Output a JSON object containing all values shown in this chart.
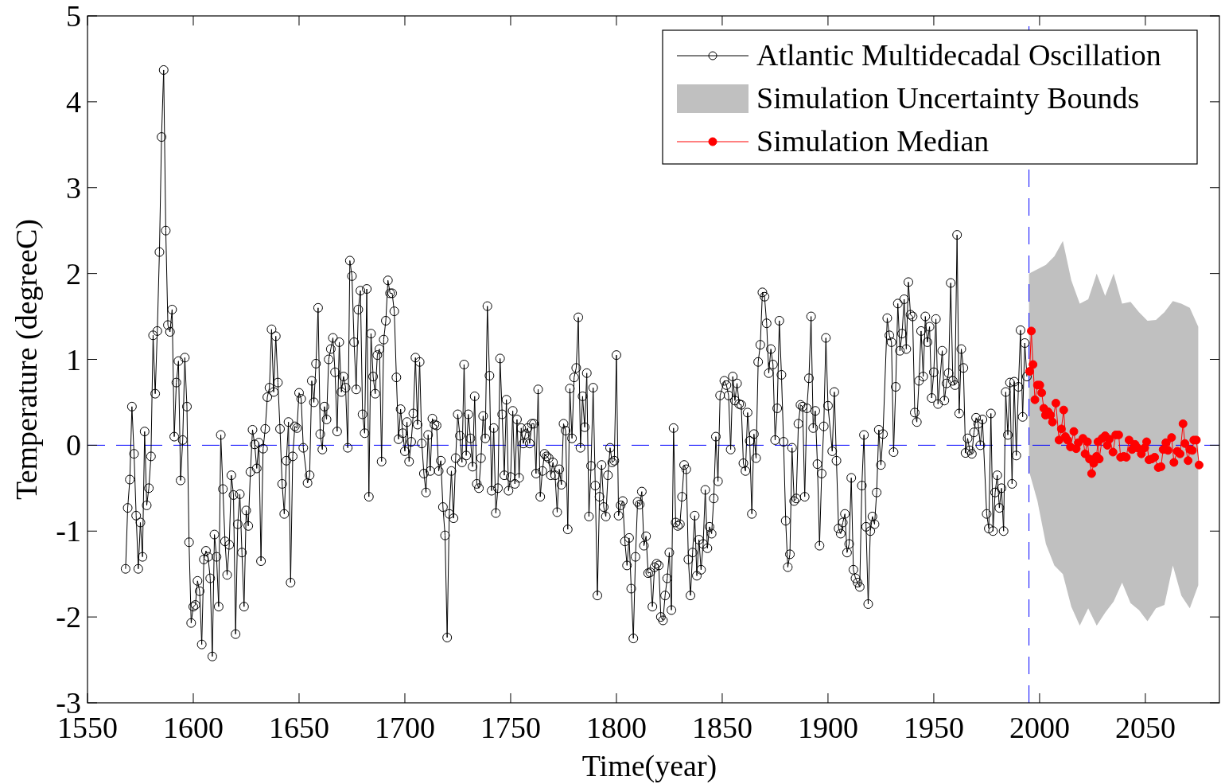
{
  "chart_data": {
    "type": "line",
    "xlabel": "Time(year)",
    "ylabel": "Temperature (degreeC)",
    "xlim": [
      1550,
      2085
    ],
    "xticks": [
      1550,
      1600,
      1650,
      1700,
      1750,
      1800,
      1850,
      1900,
      1950,
      2000,
      2050
    ],
    "ylim": [
      -3,
      5
    ],
    "yticks": [
      -3,
      -2,
      -1,
      0,
      1,
      2,
      3,
      4,
      5
    ],
    "grid": false,
    "legend": "top right",
    "ref_lines": [
      {
        "axis": "y",
        "value": 0,
        "color": "#0000ff",
        "line_style": "dashed"
      },
      {
        "axis": "x",
        "value": 1995,
        "color": "#0000ff",
        "line_style": "dashed"
      }
    ],
    "series": [
      {
        "name": "Atlantic Multidecadal Oscillation",
        "color": "#000000",
        "marker": "circle",
        "line_style": "solid",
        "x": [
          1568,
          1569,
          1570,
          1571,
          1572,
          1573,
          1574,
          1575,
          1576,
          1577,
          1578,
          1579,
          1580,
          1581,
          1582,
          1583,
          1584,
          1585,
          1586,
          1587,
          1588,
          1589,
          1590,
          1591,
          1592,
          1593,
          1594,
          1595,
          1596,
          1597,
          1598,
          1599,
          1600,
          1601,
          1602,
          1603,
          1604,
          1605,
          1606,
          1607,
          1608,
          1609,
          1610,
          1611,
          1612,
          1613,
          1614,
          1615,
          1616,
          1617,
          1618,
          1619,
          1620,
          1621,
          1622,
          1623,
          1624,
          1625,
          1626,
          1627,
          1628,
          1629,
          1630,
          1631,
          1632,
          1633,
          1634,
          1635,
          1636,
          1637,
          1638,
          1639,
          1640,
          1641,
          1642,
          1643,
          1644,
          1645,
          1646,
          1647,
          1648,
          1649,
          1650,
          1651,
          1652,
          1654,
          1655,
          1656,
          1657,
          1658,
          1659,
          1660,
          1661,
          1662,
          1663,
          1664,
          1665,
          1666,
          1667,
          1668,
          1669,
          1670,
          1671,
          1672,
          1673,
          1674,
          1675,
          1676,
          1677,
          1678,
          1679,
          1680,
          1681,
          1682,
          1683,
          1684,
          1685,
          1686,
          1687,
          1688,
          1689,
          1690,
          1691,
          1692,
          1693,
          1694,
          1695,
          1696,
          1697,
          1698,
          1699,
          1700,
          1701,
          1702,
          1703,
          1704,
          1705,
          1706,
          1707,
          1708,
          1709,
          1710,
          1711,
          1712,
          1713,
          1714,
          1715,
          1716,
          1717,
          1718,
          1719,
          1720,
          1721,
          1722,
          1723,
          1724,
          1725,
          1726,
          1727,
          1728,
          1729,
          1730,
          1731,
          1732,
          1733,
          1734,
          1735,
          1736,
          1737,
          1738,
          1739,
          1740,
          1741,
          1742,
          1743,
          1744,
          1745,
          1746,
          1747,
          1748,
          1749,
          1750,
          1751,
          1752,
          1753,
          1754,
          1755,
          1756,
          1757,
          1758,
          1759,
          1760,
          1761,
          1762,
          1763,
          1764,
          1765,
          1766,
          1767,
          1768,
          1769,
          1770,
          1771,
          1772,
          1773,
          1774,
          1775,
          1776,
          1777,
          1778,
          1779,
          1780,
          1781,
          1782,
          1783,
          1784,
          1785,
          1786,
          1787,
          1788,
          1789,
          1790,
          1791,
          1792,
          1793,
          1794,
          1795,
          1796,
          1797,
          1798,
          1799,
          1800,
          1801,
          1802,
          1803,
          1804,
          1805,
          1806,
          1807,
          1808,
          1809,
          1810,
          1811,
          1812,
          1813,
          1814,
          1815,
          1816,
          1817,
          1818,
          1819,
          1820,
          1821,
          1822,
          1823,
          1824,
          1825,
          1826,
          1827,
          1828,
          1829,
          1830,
          1831,
          1832,
          1833,
          1834,
          1835,
          1836,
          1837,
          1838,
          1839,
          1840,
          1841,
          1842,
          1843,
          1844,
          1845,
          1846,
          1847,
          1848,
          1849,
          1851,
          1852,
          1853,
          1854,
          1855,
          1856,
          1857,
          1858,
          1859,
          1860,
          1861,
          1862,
          1863,
          1864,
          1865,
          1866,
          1867,
          1868,
          1869,
          1870,
          1871,
          1872,
          1873,
          1874,
          1875,
          1876,
          1877,
          1878,
          1879,
          1880,
          1881,
          1882,
          1883,
          1884,
          1885,
          1886,
          1887,
          1888,
          1889,
          1890,
          1891,
          1892,
          1893,
          1894,
          1895,
          1896,
          1897,
          1898,
          1899,
          1900,
          1902,
          1903,
          1904,
          1905,
          1906,
          1907,
          1908,
          1909,
          1910,
          1911,
          1912,
          1913,
          1914,
          1915,
          1916,
          1917,
          1918,
          1919,
          1920,
          1921,
          1922,
          1923,
          1924,
          1925,
          1926,
          1928,
          1929,
          1930,
          1931,
          1932,
          1933,
          1934,
          1935,
          1936,
          1937,
          1938,
          1939,
          1940,
          1941,
          1942,
          1943,
          1944,
          1945,
          1946,
          1947,
          1948,
          1949,
          1950,
          1951,
          1952,
          1954,
          1955,
          1956,
          1957,
          1958,
          1959,
          1960,
          1961,
          1962,
          1963,
          1964,
          1965,
          1966,
          1967,
          1968,
          1969,
          1970,
          1971,
          1972,
          1973,
          1975,
          1976,
          1977,
          1978,
          1979,
          1980,
          1981,
          1982,
          1983,
          1984,
          1985,
          1986,
          1987,
          1988,
          1989,
          1990,
          1991,
          1992,
          1993,
          1994
        ],
        "values": [
          -1.44,
          -0.73,
          -0.4,
          0.45,
          -0.1,
          -0.82,
          -1.44,
          -0.9,
          -1.3,
          0.16,
          -0.7,
          -0.5,
          -0.13,
          1.28,
          0.6,
          1.33,
          2.25,
          3.59,
          4.37,
          2.5,
          1.4,
          1.32,
          1.58,
          0.1,
          0.73,
          0.98,
          -0.41,
          0.06,
          1.02,
          0.45,
          -1.13,
          -2.07,
          -1.88,
          -1.86,
          -1.58,
          -1.7,
          -2.32,
          -1.33,
          -1.23,
          -1.3,
          -1.55,
          -2.46,
          -1.04,
          -1.3,
          -1.88,
          0.12,
          -0.51,
          -1.12,
          -1.51,
          -1.16,
          -0.35,
          -0.58,
          -2.2,
          -0.92,
          -0.57,
          -1.25,
          -1.88,
          -0.76,
          -0.94,
          -0.31,
          0.18,
          0.01,
          -0.27,
          0.03,
          -1.35,
          -0.04,
          0.19,
          0.56,
          0.67,
          1.35,
          0.62,
          1.27,
          0.73,
          0.19,
          -0.45,
          -0.8,
          -0.18,
          0.27,
          -1.6,
          -0.13,
          0.22,
          0.2,
          0.61,
          0.54,
          -0.03,
          -0.44,
          -0.35,
          0.75,
          0.5,
          0.95,
          1.6,
          0.13,
          -0.05,
          0.45,
          0.3,
          1.0,
          1.12,
          1.25,
          0.85,
          0.16,
          1.2,
          0.62,
          0.8,
          0.67,
          -0.03,
          2.15,
          1.97,
          1.2,
          0.65,
          1.58,
          1.8,
          0.36,
          0.14,
          1.82,
          -0.6,
          1.3,
          0.8,
          0.6,
          1.05,
          1.12,
          -0.19,
          1.23,
          1.45,
          1.92,
          1.77,
          1.77,
          1.56,
          0.79,
          0.07,
          0.42,
          0.14,
          -0.07,
          0.27,
          -0.19,
          0.04,
          0.37,
          1.02,
          0.24,
          0.97,
          0.02,
          -0.33,
          -0.55,
          0.12,
          -0.3,
          0.31,
          0.24,
          0.23,
          -0.3,
          -0.18,
          -0.72,
          -1.05,
          -2.24,
          -0.8,
          -0.3,
          -0.85,
          -0.15,
          0.36,
          0.11,
          -0.2,
          0.94,
          -0.12,
          0.36,
          0.08,
          -0.25,
          0.57,
          -0.45,
          -0.5,
          -0.15,
          0.34,
          0.08,
          1.62,
          0.81,
          -0.53,
          0.2,
          -0.79,
          -0.5,
          1.01,
          0.36,
          -0.35,
          0.53,
          -0.53,
          -0.37,
          0.4,
          -0.45,
          0.3,
          -0.38,
          0.2,
          0.02,
          0.13,
          0.2,
          0.02,
          0.25,
          0.25,
          -0.33,
          0.65,
          -0.6,
          -0.3,
          -0.1,
          -0.13,
          -0.15,
          -0.35,
          -0.2,
          -0.35,
          -0.78,
          -0.28,
          -0.46,
          0.25,
          0.17,
          -0.98,
          0.66,
          0.08,
          0.79,
          0.9,
          1.49,
          -0.03,
          0.57,
          0.21,
          0.84,
          -0.83,
          -0.24,
          0.67,
          -0.47,
          -1.75,
          -0.6,
          -0.23,
          -0.72,
          -0.83,
          -0.35,
          -0.03,
          -0.2,
          -0.18,
          1.05,
          -0.82,
          -0.7,
          -0.65,
          -1.12,
          -1.4,
          -1.08,
          -1.67,
          -2.25,
          -1.3,
          -0.66,
          -0.69,
          -0.54,
          -1.17,
          -1.06,
          -1.49,
          -1.48,
          -1.88,
          -1.42,
          -1.38,
          -1.4,
          -2.0,
          -2.04,
          -1.75,
          -1.55,
          -1.25,
          -1.92,
          0.2,
          -0.9,
          -0.94,
          -0.92,
          -0.6,
          -0.23,
          -0.28,
          -1.33,
          -1.75,
          -1.25,
          -0.82,
          -1.52,
          -1.1,
          -1.45,
          -1.15,
          -0.52,
          -1.2,
          -0.95,
          -1.03,
          -0.62,
          0.1,
          -0.42,
          0.58,
          0.75,
          0.7,
          0.58,
          -0.05,
          0.8,
          0.52,
          0.72,
          0.48,
          0.47,
          -0.21,
          -0.3,
          0.38,
          0.05,
          -0.8,
          0.13,
          -0.15,
          0.97,
          1.17,
          1.78,
          1.73,
          1.42,
          0.84,
          1.12,
          0.94,
          0.06,
          0.43,
          1.45,
          0.82,
          0.04,
          -0.88,
          -1.42,
          -1.27,
          -0.03,
          -0.65,
          -0.62,
          0.25,
          0.47,
          0.45,
          -0.6,
          0.43,
          0.78,
          1.5,
          0.2,
          0.4,
          -0.22,
          -1.17,
          -0.33,
          0.22,
          1.25,
          0.46,
          -0.07,
          0.62,
          -0.18,
          -0.97,
          -1.03,
          -0.9,
          -0.8,
          -1.25,
          -1.15,
          -0.38,
          -1.45,
          -1.55,
          -1.6,
          -1.65,
          -0.47,
          0.12,
          -0.95,
          -1.85,
          -1.0,
          -0.83,
          -0.92,
          -0.55,
          0.18,
          -0.23,
          0.13,
          1.48,
          1.28,
          1.2,
          -0.08,
          0.68,
          1.65,
          1.1,
          1.3,
          1.7,
          1.12,
          1.9,
          1.52,
          1.5,
          0.38,
          0.27,
          0.75,
          1.33,
          0.8,
          1.5,
          1.2,
          1.38,
          0.55,
          0.85,
          1.47,
          0.48,
          1.1,
          0.52,
          0.72,
          0.84,
          1.89,
          0.75,
          0.7,
          2.45,
          0.37,
          1.12,
          0.9,
          -0.09,
          0.08,
          -0.06,
          -0.1,
          0.15,
          0.32,
          0.25,
          0.0,
          0.3,
          -0.8,
          -0.97,
          0.37,
          -1.0,
          -0.55,
          -0.35,
          -0.73,
          -0.5,
          -1.0,
          0.62,
          0.12,
          0.73,
          -0.45,
          0.74,
          -0.12,
          0.68,
          1.34,
          0.33,
          1.19,
          0.8
        ]
      },
      {
        "name": "Simulation Uncertainty Bounds",
        "type": "area",
        "color": "#c0c0c0",
        "x": [
          1995,
          1999,
          2003,
          2007,
          2011,
          2015,
          2019,
          2023,
          2027,
          2031,
          2035,
          2039,
          2043,
          2047,
          2051,
          2055,
          2059,
          2063,
          2067,
          2071,
          2075
        ],
        "values": [
          null,
          null,
          null,
          null,
          null,
          null,
          null,
          null,
          null,
          null,
          null,
          null,
          null,
          null,
          null,
          null,
          null,
          null,
          null,
          null,
          null
        ],
        "upper": [
          2.0,
          2.05,
          2.1,
          2.2,
          2.38,
          1.92,
          1.65,
          1.7,
          2.0,
          1.74,
          2.0,
          1.65,
          1.67,
          1.55,
          1.45,
          1.46,
          1.55,
          1.68,
          1.65,
          1.6,
          1.38
        ],
        "lower": [
          -0.3,
          -0.65,
          -1.15,
          -1.4,
          -1.5,
          -1.88,
          -2.1,
          -1.9,
          -2.1,
          -1.95,
          -1.82,
          -1.6,
          -1.84,
          -1.92,
          -2.05,
          -1.9,
          -1.86,
          -1.4,
          -1.75,
          -1.9,
          -1.63
        ]
      },
      {
        "name": "Simulation Median",
        "color": "#ff0000",
        "marker": "circle",
        "line_style": "solid",
        "x": [
          1995.3,
          1996.1,
          1996.9,
          1997.8,
          1999.0,
          2000.1,
          2001.0,
          2002.0,
          2002.8,
          2004.0,
          2005.2,
          2006.1,
          2007.7,
          2009.2,
          2010.3,
          2011.4,
          2012.2,
          2013.2,
          2014.6,
          2016.2,
          2017.3,
          2018.3,
          2020.5,
          2021.5,
          2022.6,
          2023.6,
          2024.6,
          2025.6,
          2026.9,
          2027.6,
          2028.2,
          2029.6,
          2031.0,
          2032.0,
          2033.0,
          2034.7,
          2036.0,
          2037.4,
          2038.3,
          2039.8,
          2041.0,
          2042.3,
          2043.7,
          2045.1,
          2046.3,
          2048.1,
          2049.7,
          2050.6,
          2051.7,
          2053.0,
          2054.4,
          2056.1,
          2057.4,
          2058.4,
          2059.7,
          2060.7,
          2062.4,
          2063.5,
          2065.1,
          2066.4,
          2067.8,
          2068.7,
          2070.2,
          2071.1,
          2072.2,
          2072.9,
          2074.1,
          2075.4
        ],
        "values": [
          0.86,
          1.33,
          0.94,
          0.53,
          0.7,
          0.7,
          0.61,
          0.43,
          0.35,
          0.39,
          0.35,
          0.27,
          0.49,
          0.06,
          0.19,
          0.41,
          0.1,
          0.06,
          -0.02,
          0.16,
          -0.04,
          0.03,
          0.08,
          -0.1,
          0.04,
          -0.16,
          -0.33,
          -0.21,
          -0.13,
          0.04,
          -0.16,
          0.08,
          0.11,
          0.0,
          0.07,
          -0.08,
          0.12,
          0.12,
          -0.14,
          -0.13,
          -0.14,
          0.06,
          -0.05,
          0.01,
          -0.03,
          -0.1,
          -0.03,
          0.04,
          -0.17,
          -0.16,
          -0.14,
          -0.26,
          -0.25,
          -0.05,
          0.03,
          -0.06,
          0.09,
          -0.2,
          -0.07,
          -0.1,
          0.25,
          0.02,
          -0.18,
          -0.05,
          -0.06,
          0.06,
          0.06,
          -0.23
        ]
      }
    ]
  }
}
